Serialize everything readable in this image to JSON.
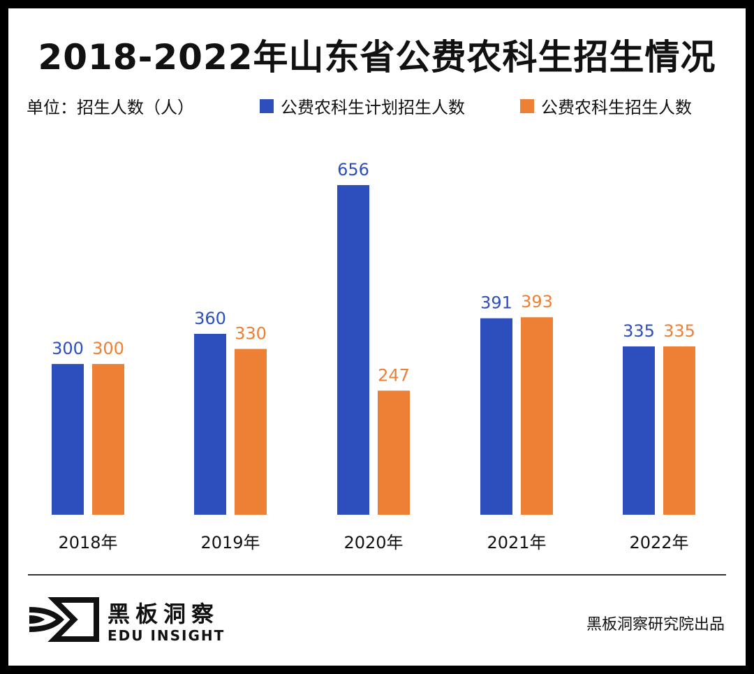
{
  "title": "2018-2022年山东省公费农科生招生情况",
  "unit_label": "单位：招生人数（人）",
  "chart_data": {
    "type": "bar",
    "title": "2018-2022年山东省公费农科生招生情况",
    "ylabel": "单位：招生人数（人）",
    "categories": [
      "2018年",
      "2019年",
      "2020年",
      "2021年",
      "2022年"
    ],
    "series": [
      {
        "name": "公费农科生计划招生人数",
        "color": "#2c4fbd",
        "values": [
          300,
          360,
          656,
          391,
          335
        ]
      },
      {
        "name": "公费农科生招生人数",
        "color": "#ed8034",
        "values": [
          300,
          330,
          247,
          393,
          335
        ]
      }
    ],
    "ylim": [
      0,
      656
    ],
    "grid": false,
    "legend": "top-right"
  },
  "footer": {
    "brand_cn": "黑板洞察",
    "brand_en": "EDU INSIGHT",
    "credit": "黑板洞察研究院出品"
  }
}
